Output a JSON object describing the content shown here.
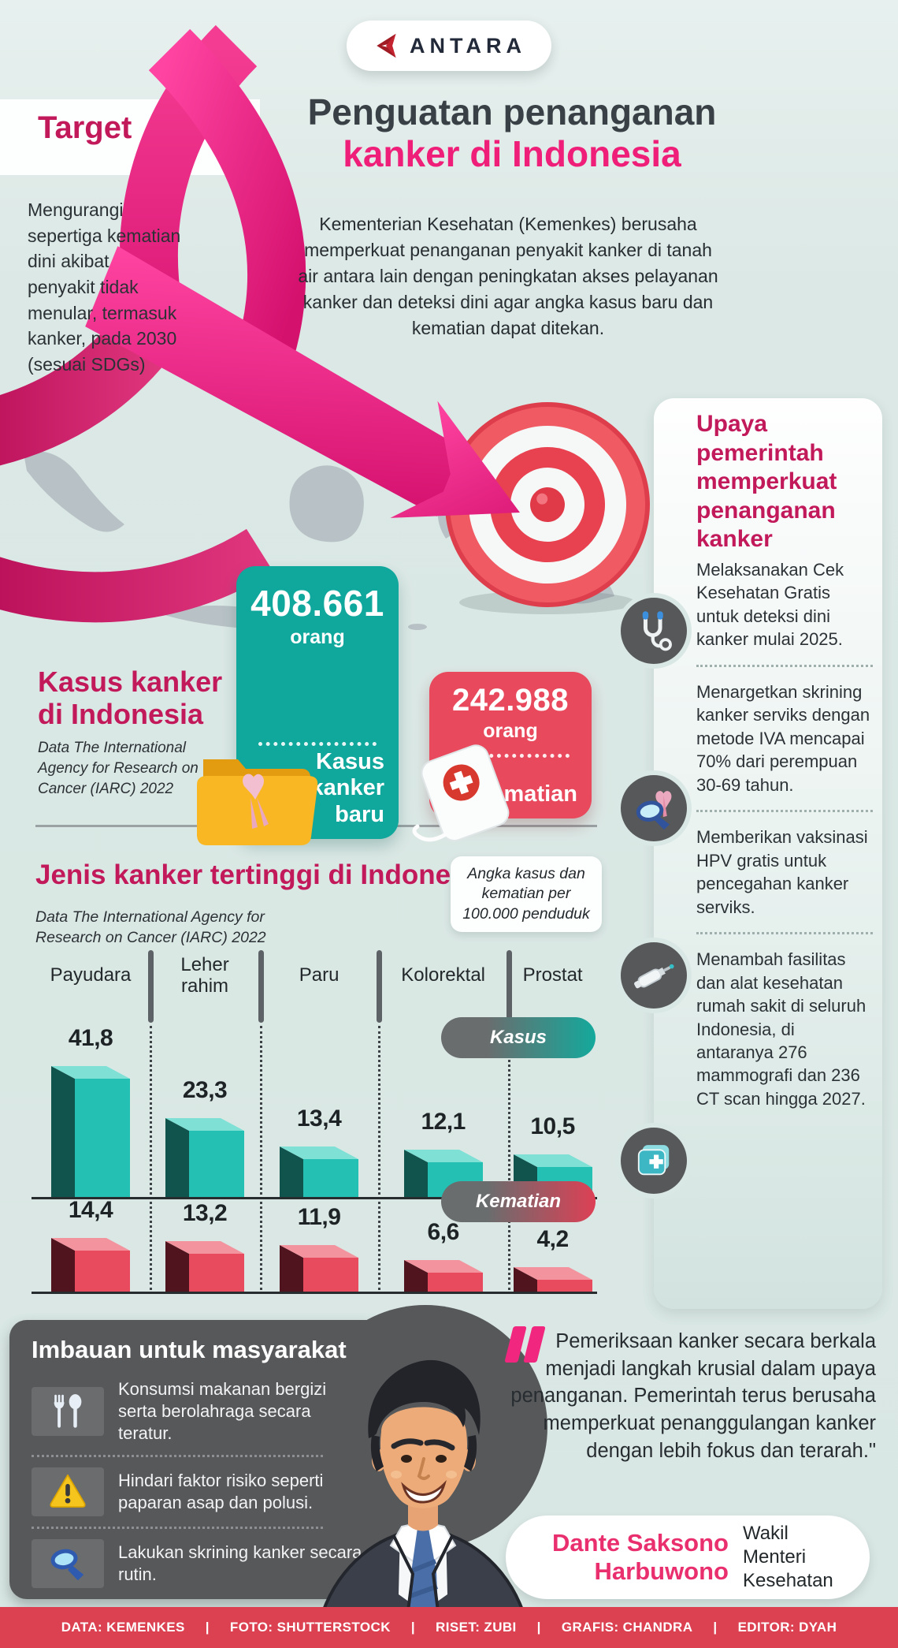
{
  "brand": {
    "name": "ANTARA",
    "logo_icon": "antara-arrow-icon"
  },
  "target": {
    "heading": "Target",
    "body": "Mengurangi sepertiga kematian dini akibat penyakit tidak menular, termasuk kanker, pada 2030 (sesuai SDGs)"
  },
  "header": {
    "title_line1": "Penguatan penanganan",
    "title_line2": "kanker di Indonesia",
    "intro": "Kementerian Kesehatan (Kemenkes) berusaha memperkuat penanganan penyakit kanker di tanah air antara lain dengan peningkatan akses pelayanan kanker dan deteksi dini agar angka kasus baru dan kematian dapat ditekan."
  },
  "cases": {
    "heading": "Kasus kanker di Indonesia",
    "source": "Data The International Agency for Research on Cancer (IARC) 2022",
    "new_cases": {
      "value": "408.661",
      "unit": "orang",
      "label": "Kasus kanker baru"
    },
    "deaths": {
      "value": "242.988",
      "unit": "orang",
      "label": "Kematian"
    }
  },
  "chart_data": {
    "type": "bar",
    "heading": "Jenis kanker tertinggi di Indonesia",
    "source": "Data The International Agency for Research on Cancer (IARC) 2022",
    "note": "Angka kasus dan kematian per 100.000 penduduk",
    "unit": "per 100.000 penduduk",
    "categories": [
      "Payudara",
      "Leher rahim",
      "Paru",
      "Kolorektal",
      "Prostat"
    ],
    "series": [
      {
        "name": "Kasus",
        "color": "#23c0b3",
        "values": [
          41.8,
          23.3,
          13.4,
          12.1,
          10.5
        ],
        "labels": [
          "41,8",
          "23,3",
          "13,4",
          "12,1",
          "10,5"
        ]
      },
      {
        "name": "Kematian",
        "color": "#e84a5e",
        "values": [
          14.4,
          13.2,
          11.9,
          6.6,
          4.2
        ],
        "labels": [
          "14,4",
          "13,2",
          "11,9",
          "6,6",
          "4,2"
        ]
      }
    ],
    "legend_position": "inline-right",
    "grid": false
  },
  "efforts": {
    "heading": "Upaya pemerintah memperkuat penanganan kanker",
    "items": [
      {
        "icon": "stethoscope-icon",
        "text": "Melaksanakan Cek Kesehatan Gratis untuk deteksi dini kanker mulai 2025."
      },
      {
        "icon": "screening-magnifier-icon",
        "text": "Menargetkan skrining kanker serviks dengan metode IVA mencapai 70% dari perempuan 30-69 tahun."
      },
      {
        "icon": "syringe-icon",
        "text": "Memberikan vaksinasi HPV gratis untuk pencegahan kanker serviks."
      },
      {
        "icon": "first-aid-kit-icon",
        "text": "Menambah fasilitas dan alat kesehatan rumah sakit di seluruh Indonesia, di antaranya 276 mammografi dan 236 CT scan hingga 2027."
      }
    ]
  },
  "advice": {
    "heading": "Imbauan untuk masyarakat",
    "items": [
      {
        "icon": "cutlery-icon",
        "text": "Konsumsi makanan bergizi serta berolahraga secara teratur."
      },
      {
        "icon": "warning-icon",
        "text": "Hindari faktor risiko seperti paparan asap dan polusi."
      },
      {
        "icon": "magnifier-icon",
        "text": "Lakukan skrining kanker secara rutin."
      }
    ]
  },
  "quote": {
    "text": "Pemeriksaan kanker secara berkala menjadi langkah krusial dalam upaya penanganan. Pemerintah terus berusaha memperkuat penanggulangan kanker dengan lebih fokus dan terarah.\"",
    "name": "Dante Saksono Harbuwono",
    "title": "Wakil Menteri Kesehatan"
  },
  "footer": {
    "credits": [
      "DATA: KEMENKES",
      "FOTO: SHUTTERSTOCK",
      "RISET: ZUBI",
      "GRAFIS: CHANDRA",
      "EDITOR: DYAH"
    ]
  },
  "colors": {
    "background": "#dbe8e5",
    "accent_pink": "#ee1e79",
    "heading_crimson": "#c2195b",
    "teal": "#10a79c",
    "red": "#e8495c",
    "footer_red": "#dc4152",
    "panel_dark": "#57585a"
  }
}
